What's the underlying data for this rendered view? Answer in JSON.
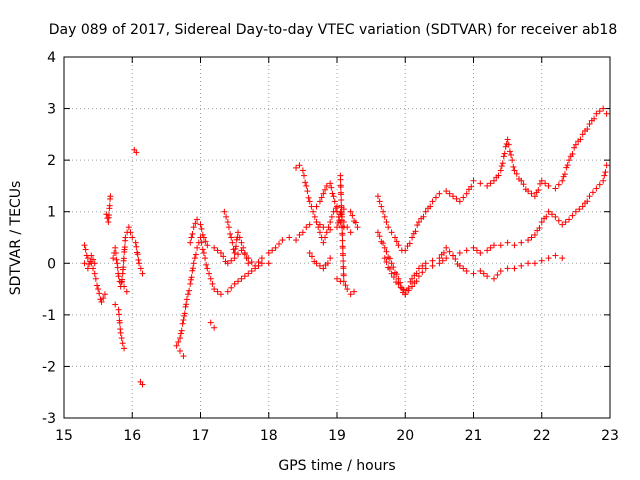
{
  "chart_data": {
    "type": "scatter",
    "title": "Day 089 of 2017, Sidereal Day-to-day VTEC variation (SDTVAR) for receiver ab18",
    "xlabel": "GPS time / hours",
    "ylabel": "SDTVAR / TECUs",
    "xlim": [
      15,
      23
    ],
    "ylim": [
      -3,
      4
    ],
    "xticks": [
      "15",
      "16",
      "17",
      "18",
      "19",
      "20",
      "21",
      "22",
      "23"
    ],
    "yticks": [
      "-3",
      "-2",
      "-1",
      "0",
      "1",
      "2",
      "3",
      "4"
    ],
    "grid": true,
    "marker": "plus",
    "color": "#ff0000",
    "series": [
      {
        "name": "SDTVAR",
        "tracks": [
          {
            "x": [
              15.3,
              15.35,
              15.4,
              15.45,
              15.5,
              15.55,
              15.6
            ],
            "y": [
              0.35,
              0.1,
              0.0,
              -0.2,
              -0.5,
              -0.75,
              -0.6
            ]
          },
          {
            "x": [
              15.3,
              15.35,
              15.4,
              15.45
            ],
            "y": [
              0.0,
              -0.1,
              0.15,
              0.0
            ]
          },
          {
            "x": [
              15.62,
              15.65,
              15.68
            ],
            "y": [
              0.95,
              0.8,
              1.3
            ]
          },
          {
            "x": [
              15.72,
              15.75,
              15.78,
              15.8,
              15.83,
              15.86,
              15.9,
              15.95,
              16.0,
              16.05,
              16.1,
              16.15
            ],
            "y": [
              0.1,
              0.3,
              0.0,
              -0.25,
              -0.45,
              -0.2,
              0.5,
              0.7,
              0.5,
              0.4,
              0.0,
              -0.2
            ]
          },
          {
            "x": [
              15.75,
              15.8,
              15.83,
              15.86,
              15.88
            ],
            "y": [
              -0.8,
              -0.9,
              -1.35,
              -1.55,
              -1.65
            ]
          },
          {
            "x": [
              15.85,
              15.88,
              15.92
            ],
            "y": [
              -0.35,
              -0.45,
              -0.55
            ]
          },
          {
            "x": [
              16.03,
              16.06
            ],
            "y": [
              2.2,
              2.15
            ]
          },
          {
            "x": [
              16.12,
              16.15
            ],
            "y": [
              -2.3,
              -2.35
            ]
          },
          {
            "x": [
              16.65,
              16.7,
              16.75,
              16.8,
              16.85,
              16.9,
              16.95,
              17.0,
              17.05,
              17.1,
              17.15,
              17.2,
              17.3,
              17.4,
              17.5,
              17.6,
              17.7,
              17.8,
              17.9,
              18.0
            ],
            "y": [
              -1.6,
              -1.45,
              -1.1,
              -0.7,
              -0.4,
              0.0,
              0.3,
              0.5,
              0.2,
              -0.1,
              -0.3,
              -0.5,
              -0.6,
              -0.55,
              -0.4,
              -0.3,
              -0.2,
              -0.1,
              0.0,
              0.0
            ]
          },
          {
            "x": [
              16.7,
              16.75
            ],
            "y": [
              -1.7,
              -1.8
            ]
          },
          {
            "x": [
              16.85,
              16.9,
              16.95,
              17.0,
              17.05,
              17.1,
              17.2,
              17.3,
              17.4,
              17.5,
              17.6,
              17.7,
              17.8,
              17.9
            ],
            "y": [
              0.4,
              0.7,
              0.85,
              0.75,
              0.5,
              0.35,
              0.3,
              0.2,
              0.0,
              0.1,
              0.25,
              0.1,
              -0.05,
              0.1
            ]
          },
          {
            "x": [
              17.15,
              17.2
            ],
            "y": [
              -1.15,
              -1.25
            ]
          },
          {
            "x": [
              17.35,
              17.4,
              17.45,
              17.5,
              17.55,
              17.6,
              17.65,
              17.7
            ],
            "y": [
              1.0,
              0.8,
              0.5,
              0.2,
              0.6,
              0.4,
              0.2,
              0.0
            ]
          },
          {
            "x": [
              18.0,
              18.1,
              18.2,
              18.3,
              18.4,
              18.45,
              18.5,
              18.55,
              18.6,
              18.7,
              18.8,
              18.9,
              19.0,
              19.05,
              19.1,
              19.2,
              19.3
            ],
            "y": [
              0.2,
              0.3,
              0.45,
              0.5,
              0.45,
              0.55,
              0.6,
              0.7,
              0.75,
              0.8,
              0.7,
              0.65,
              0.7,
              0.95,
              1.05,
              1.0,
              0.7
            ]
          },
          {
            "x": [
              18.4,
              18.45,
              18.5,
              18.55,
              18.6,
              18.65,
              18.7,
              18.75,
              18.8,
              18.85,
              18.9,
              18.95,
              19.0,
              19.05,
              19.1,
              19.15,
              19.2
            ],
            "y": [
              1.85,
              1.9,
              1.8,
              1.5,
              1.2,
              1.0,
              0.8,
              0.6,
              0.4,
              0.6,
              0.8,
              1.0,
              1.1,
              1.0,
              0.8,
              0.7,
              0.6
            ]
          },
          {
            "x": [
              18.7,
              18.75,
              18.8,
              18.85,
              18.9,
              18.95,
              19.0,
              19.05,
              19.1
            ],
            "y": [
              1.1,
              1.2,
              1.35,
              1.5,
              1.55,
              1.3,
              1.0,
              0.8,
              0.7
            ]
          },
          {
            "x": [
              18.6,
              18.7,
              18.8,
              18.9
            ],
            "y": [
              0.2,
              0.0,
              -0.1,
              0.1
            ]
          },
          {
            "x": [
              19.05,
              19.1,
              19.15,
              19.2,
              19.25
            ],
            "y": [
              1.7,
              -0.35,
              -0.5,
              -0.6,
              -0.55
            ]
          },
          {
            "x": [
              19.0,
              19.05
            ],
            "y": [
              -0.3,
              -0.35
            ]
          },
          {
            "x": [
              19.6,
              19.65,
              19.7,
              19.75,
              19.8,
              19.85,
              19.9,
              19.95,
              20.0,
              20.1,
              20.2,
              20.3,
              20.4,
              20.5,
              20.6,
              20.7,
              20.8,
              20.9,
              21.0,
              21.1,
              21.2,
              21.3,
              21.4,
              21.5,
              21.55,
              21.6,
              21.7,
              21.8,
              21.9,
              22.0,
              22.1,
              22.2,
              22.3,
              22.4,
              22.5,
              22.6,
              22.7,
              22.8,
              22.9,
              22.95
            ],
            "y": [
              1.3,
              1.1,
              0.9,
              0.7,
              0.6,
              0.5,
              0.35,
              0.25,
              0.25,
              0.5,
              0.8,
              1.0,
              1.2,
              1.35,
              1.4,
              1.3,
              1.2,
              1.35,
              1.6,
              1.55,
              1.5,
              1.6,
              1.8,
              2.4,
              2.1,
              1.8,
              1.6,
              1.4,
              1.3,
              1.6,
              1.5,
              1.45,
              1.6,
              2.0,
              2.3,
              2.5,
              2.7,
              2.9,
              3.0,
              2.9
            ]
          },
          {
            "x": [
              19.6,
              19.7,
              19.8,
              19.9,
              20.0,
              20.1,
              20.2,
              20.3,
              20.4,
              20.5,
              20.6,
              20.7,
              20.8,
              20.9,
              21.0,
              21.1,
              21.2,
              21.3,
              21.4,
              21.5,
              21.6,
              21.7,
              21.8,
              21.9,
              22.0,
              22.1,
              22.2,
              22.3,
              22.4,
              22.5,
              22.6,
              22.7,
              22.8,
              22.9,
              22.95
            ],
            "y": [
              0.6,
              0.3,
              0.0,
              -0.3,
              -0.6,
              -0.45,
              -0.25,
              -0.1,
              -0.05,
              0.0,
              0.1,
              0.15,
              0.2,
              0.25,
              0.3,
              0.2,
              0.25,
              0.35,
              0.35,
              0.4,
              0.35,
              0.4,
              0.45,
              0.55,
              0.8,
              1.0,
              0.9,
              0.75,
              0.85,
              1.0,
              1.1,
              1.3,
              1.45,
              1.6,
              1.9
            ]
          },
          {
            "x": [
              19.7,
              19.8,
              19.9,
              20.0,
              20.1,
              20.2,
              20.3,
              20.4,
              20.5,
              20.6,
              20.7,
              20.8,
              20.9,
              21.0,
              21.1,
              21.2,
              21.3,
              21.4,
              21.5,
              21.6,
              21.7,
              21.8,
              21.9,
              22.0,
              22.1,
              22.2,
              22.3
            ],
            "y": [
              0.1,
              -0.2,
              -0.4,
              -0.6,
              -0.3,
              -0.1,
              0.0,
              0.05,
              0.1,
              0.3,
              0.15,
              -0.05,
              -0.15,
              -0.2,
              -0.15,
              -0.25,
              -0.3,
              -0.15,
              -0.1,
              -0.1,
              -0.05,
              0.0,
              0.0,
              0.05,
              0.1,
              0.15,
              0.1
            ]
          }
        ]
      }
    ]
  }
}
